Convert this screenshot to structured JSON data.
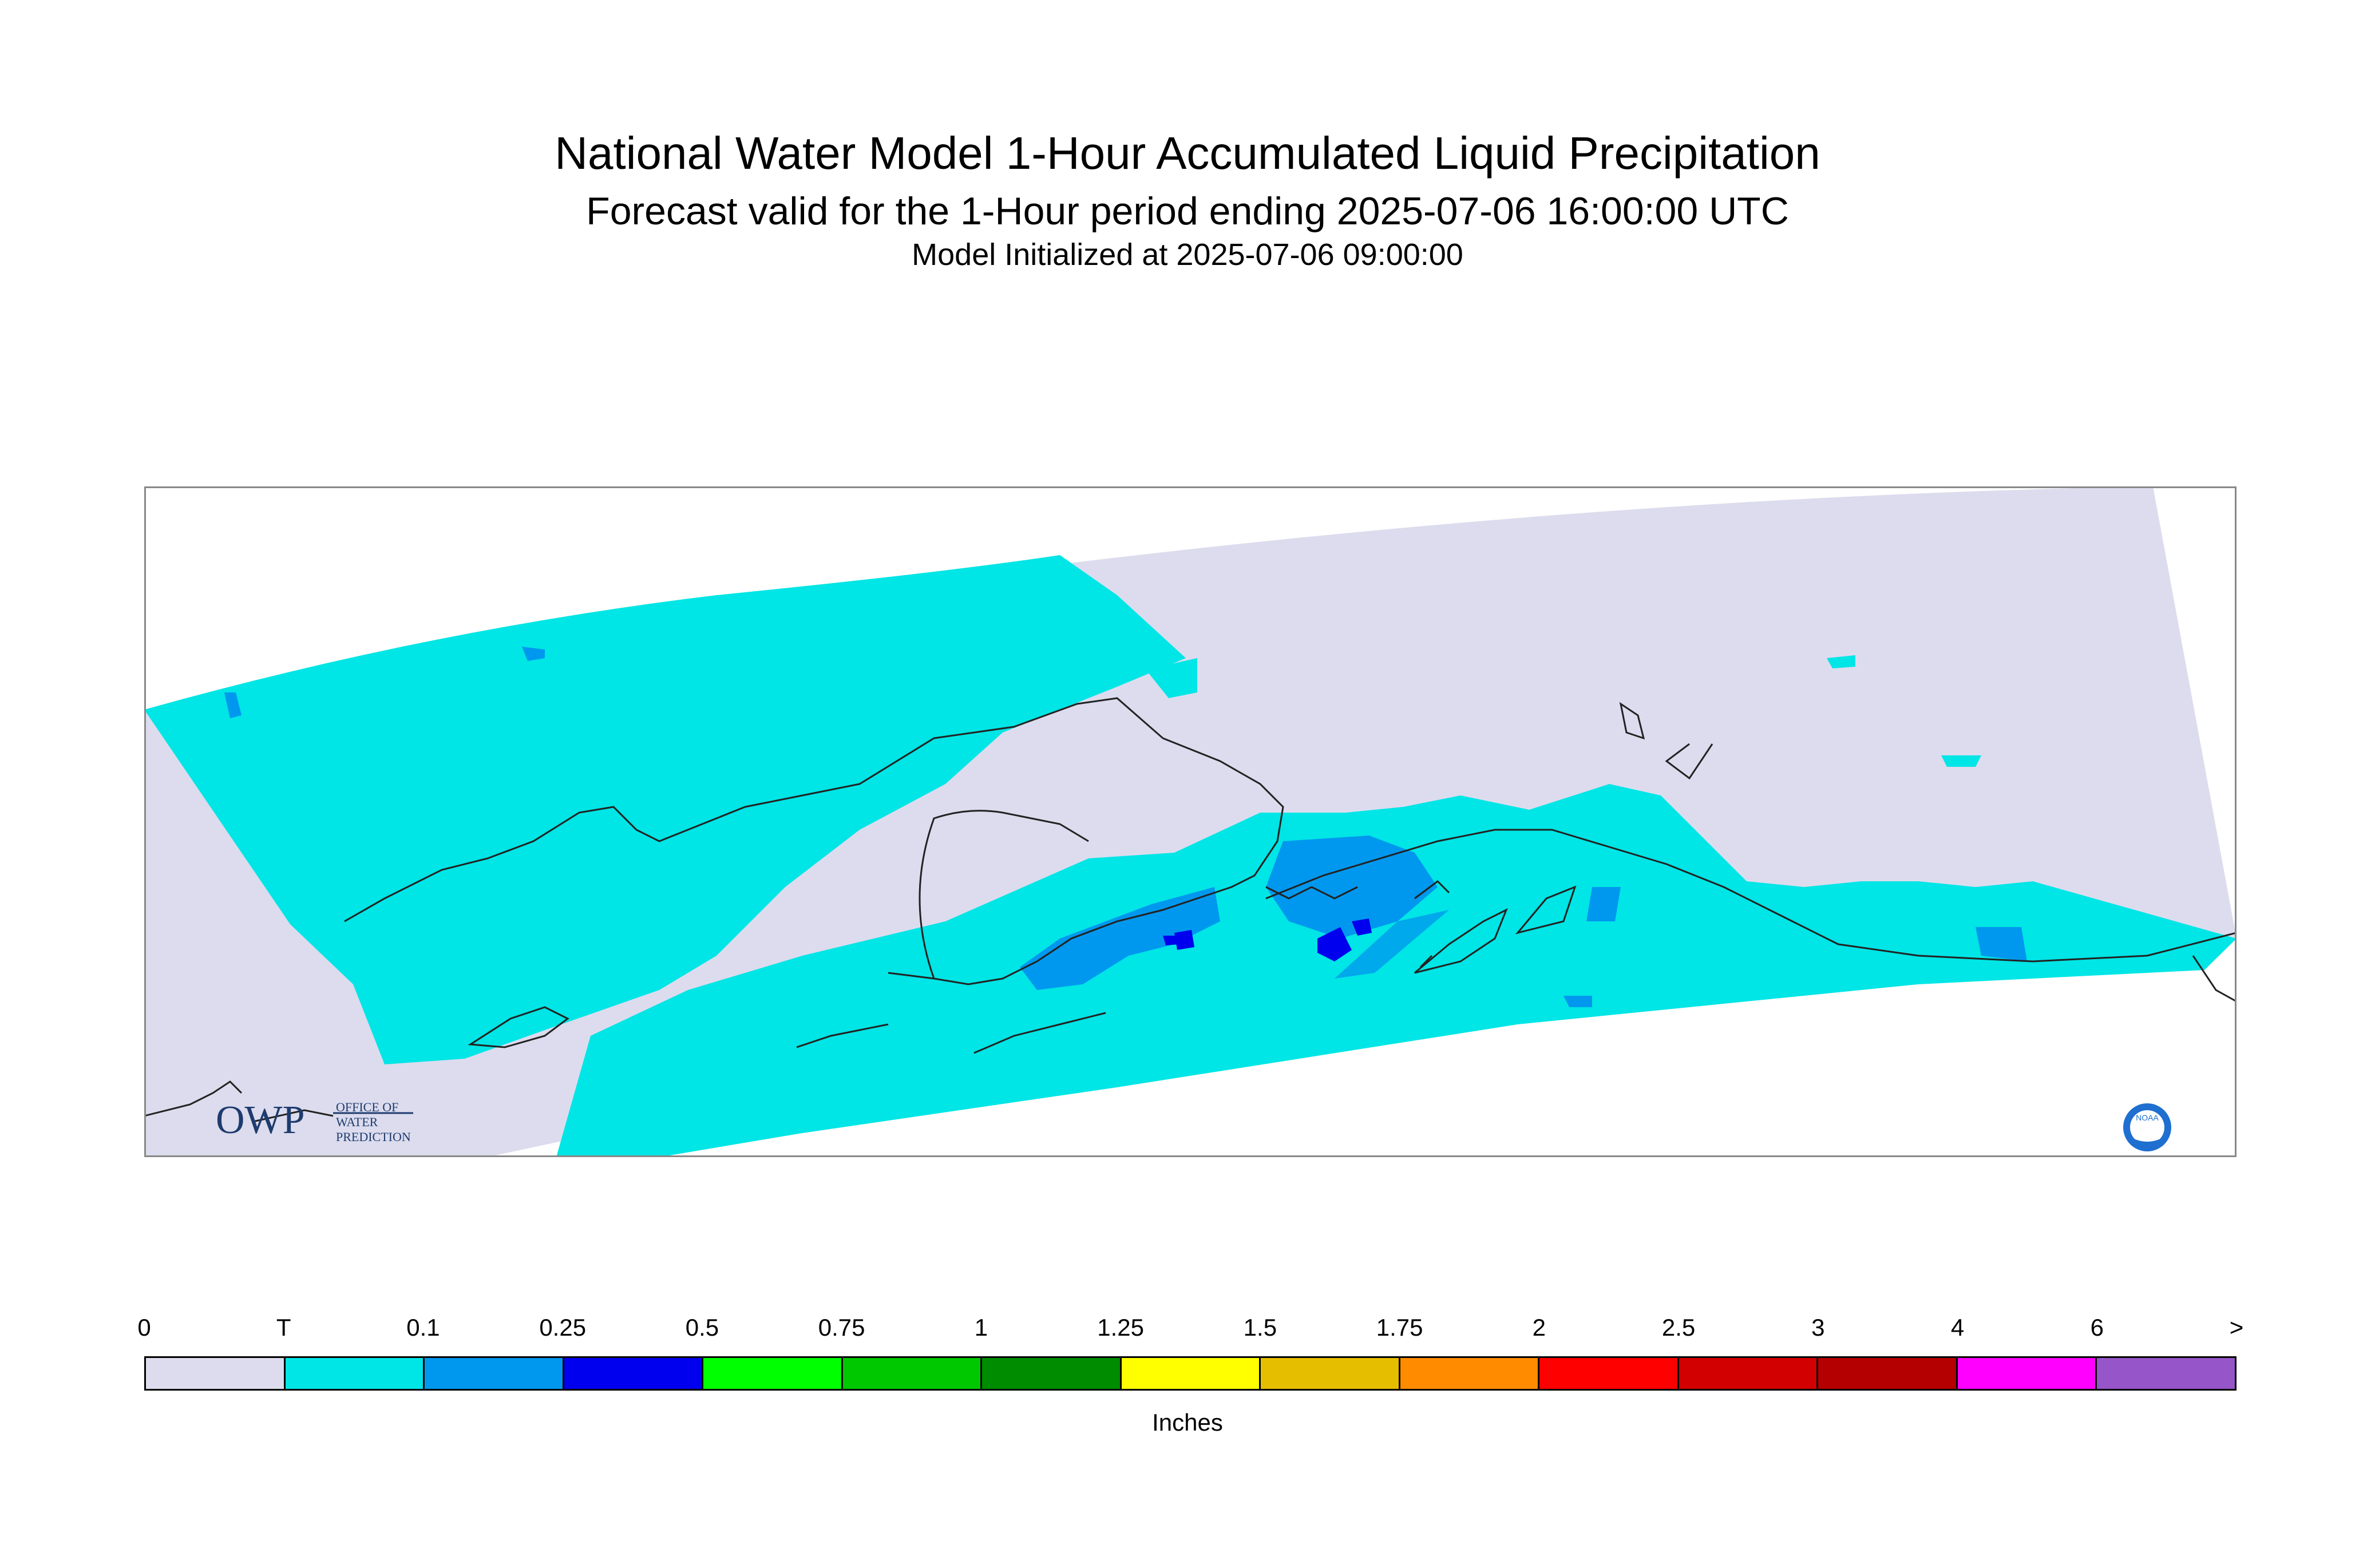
{
  "title": "National Water Model 1-Hour Accumulated Liquid Precipitation",
  "subtitle": "Forecast valid for the 1-Hour period ending 2025-07-06 16:00:00 UTC",
  "init_text": "Model Initialized at 2025-07-06 09:00:00",
  "logo": {
    "owp_letters": "OWP",
    "owp_line1": "OFFICE OF",
    "owp_line2": "WATER",
    "owp_line3": "PREDICTION",
    "noaa_text": "NOAA"
  },
  "legend": {
    "units": "Inches",
    "labels": [
      "0",
      "T",
      "0.1",
      "0.25",
      "0.5",
      "0.75",
      "1",
      "1.25",
      "1.5",
      "1.75",
      "2",
      "2.5",
      "3",
      "4",
      "6",
      ">"
    ],
    "colors": [
      "#dcdcee",
      "#00e5e5",
      "#0098ee",
      "#0000ee",
      "#00ff00",
      "#00c800",
      "#008c00",
      "#ffff00",
      "#e6be00",
      "#ff8c00",
      "#ff0000",
      "#d20000",
      "#b40000",
      "#ff00ff",
      "#9655c8"
    ]
  },
  "map": {
    "region": "Alaska",
    "colors": {
      "no_precip": "#dcdcee",
      "trace": "#00e5e5",
      "light": "#0098ee",
      "moderate": "#0000ee",
      "coast": "#222222",
      "frame": "#888888"
    }
  }
}
